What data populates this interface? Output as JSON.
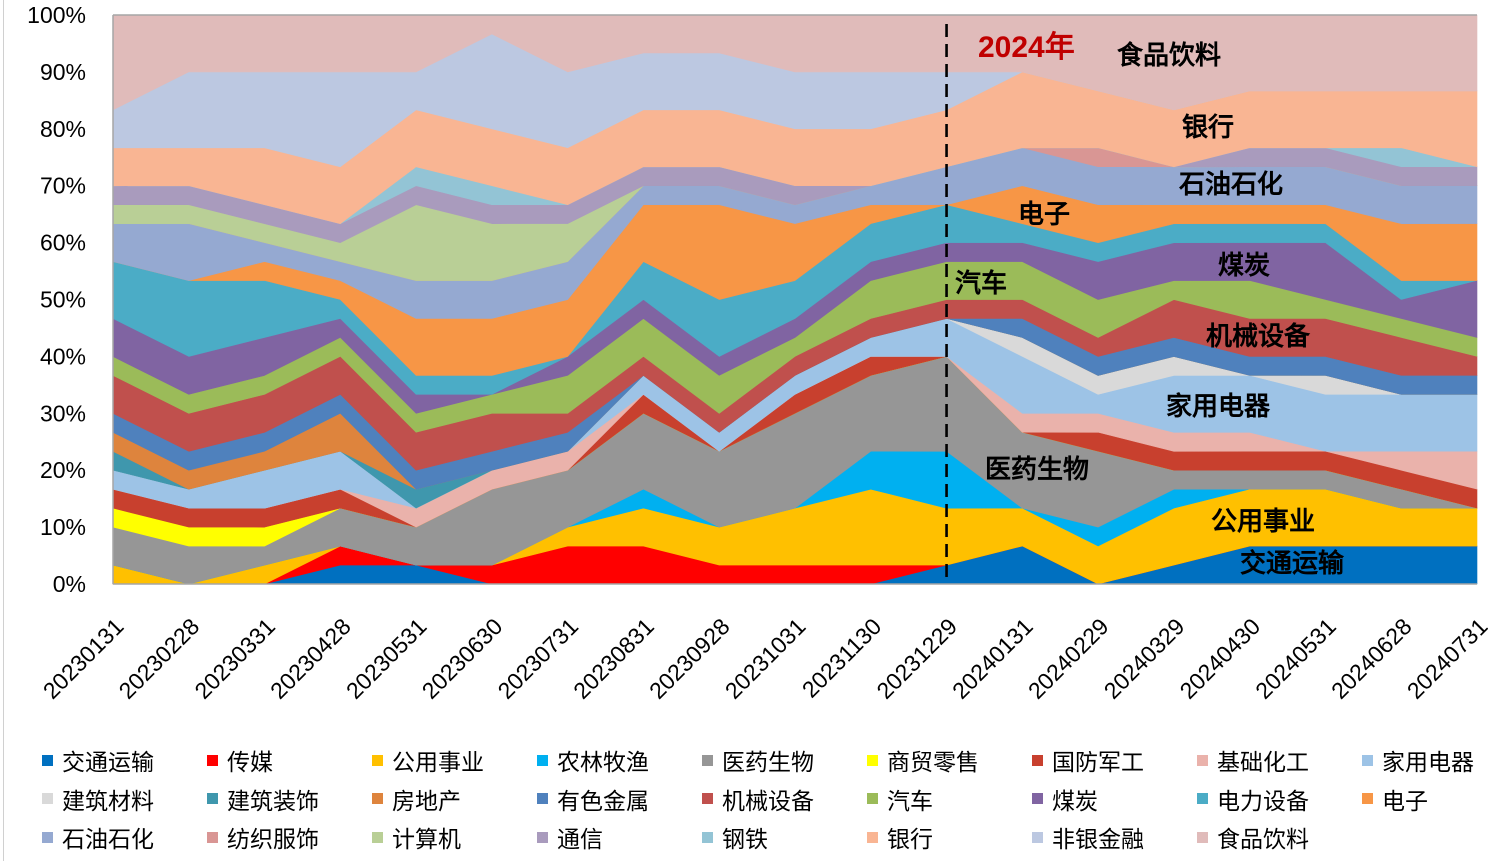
{
  "chart_data": {
    "type": "area",
    "stacked": "percent",
    "title": "",
    "xlabel": "",
    "ylabel": "",
    "ylim": [
      0,
      100
    ],
    "grid": false,
    "y_ticks": [
      0,
      10,
      20,
      30,
      40,
      50,
      60,
      70,
      80,
      90,
      100
    ],
    "y_tick_labels": [
      "0%",
      "10%",
      "20%",
      "30%",
      "40%",
      "50%",
      "60%",
      "70%",
      "80%",
      "90%",
      "100%"
    ],
    "categories": [
      "20230131",
      "20230228",
      "20230331",
      "20230428",
      "20230531",
      "20230630",
      "20230731",
      "20230831",
      "20230928",
      "20231031",
      "20231130",
      "20231229",
      "20240131",
      "20240229",
      "20240329",
      "20240430",
      "20240531",
      "20240628",
      "20240731"
    ],
    "series": [
      {
        "name": "交通运输",
        "color": "#0070C0",
        "values": [
          0,
          0,
          0,
          3.33,
          3.33,
          0,
          0,
          0,
          0,
          0,
          0,
          3.33,
          6.67,
          0,
          3.33,
          6.67,
          6.67,
          6.67,
          6.67
        ]
      },
      {
        "name": "传媒",
        "color": "#FF0000",
        "values": [
          0,
          0,
          0,
          3.33,
          0,
          3.33,
          6.67,
          6.67,
          3.33,
          3.33,
          3.33,
          0,
          0,
          0,
          0,
          0,
          0,
          0,
          0
        ]
      },
      {
        "name": "公用事业",
        "color": "#FFC000",
        "values": [
          3.33,
          0,
          3.33,
          0,
          0,
          0,
          3.33,
          6.67,
          6.67,
          10,
          13.33,
          10,
          6.67,
          6.67,
          10,
          10,
          10,
          6.67,
          6.67
        ]
      },
      {
        "name": "农林牧渔",
        "color": "#00B0F0",
        "values": [
          0,
          0,
          0,
          0,
          0,
          0,
          0,
          3.33,
          0,
          0,
          6.67,
          10,
          0,
          3.33,
          3.33,
          0,
          0,
          0,
          0
        ]
      },
      {
        "name": "医药生物",
        "color": "#969696",
        "values": [
          6.67,
          6.67,
          3.33,
          6.67,
          6.67,
          13.33,
          10,
          13.33,
          13.33,
          16.67,
          13.33,
          16.67,
          13.33,
          13.33,
          3.33,
          3.33,
          3.33,
          3.33,
          0
        ]
      },
      {
        "name": "商贸零售",
        "color": "#FFFF00",
        "values": [
          3.33,
          3.33,
          3.33,
          0,
          0,
          0,
          0,
          0,
          0,
          0,
          0,
          0,
          0,
          0,
          0,
          0,
          0,
          0,
          0
        ]
      },
      {
        "name": "国防军工",
        "color": "#C8402E",
        "values": [
          3.33,
          3.33,
          3.33,
          3.33,
          0,
          0,
          0,
          3.33,
          0,
          3.33,
          3.33,
          0,
          0,
          3.33,
          3.33,
          3.33,
          3.33,
          3.33,
          3.33
        ]
      },
      {
        "name": "基础化工",
        "color": "#EAB2AB",
        "values": [
          0,
          0,
          0,
          0,
          3.33,
          3.33,
          3.33,
          0,
          0,
          0,
          0,
          0,
          3.33,
          3.33,
          3.33,
          3.33,
          0,
          3.33,
          6.67
        ]
      },
      {
        "name": "家用电器",
        "color": "#9DC3E6",
        "values": [
          3.33,
          3.33,
          6.67,
          6.67,
          0,
          0,
          0,
          3.33,
          3.33,
          3.33,
          3.33,
          6.67,
          10,
          3.33,
          10,
          10,
          10,
          10,
          10
        ]
      },
      {
        "name": "建筑材料",
        "color": "#D9D9D9",
        "values": [
          0,
          0,
          0,
          0,
          0,
          0,
          0,
          0,
          0,
          0,
          0,
          0,
          3.33,
          3.33,
          3.33,
          0,
          3.33,
          0,
          0
        ]
      },
      {
        "name": "建筑装饰",
        "color": "#3F97AD",
        "values": [
          3.33,
          0,
          0,
          0,
          3.33,
          0,
          0,
          0,
          0,
          0,
          0,
          0,
          0,
          0,
          0,
          0,
          0,
          0,
          0
        ]
      },
      {
        "name": "房地产",
        "color": "#DE843D",
        "values": [
          3.33,
          3.33,
          3.33,
          6.67,
          0,
          0,
          0,
          0,
          0,
          0,
          0,
          0,
          0,
          0,
          0,
          0,
          0,
          0,
          0
        ]
      },
      {
        "name": "有色金属",
        "color": "#4F81BD",
        "values": [
          3.33,
          3.33,
          3.33,
          3.33,
          3.33,
          3.33,
          3.33,
          0,
          0,
          0,
          0,
          0,
          3.33,
          3.33,
          3.33,
          3.33,
          3.33,
          3.33,
          3.33
        ]
      },
      {
        "name": "机械设备",
        "color": "#C0504D",
        "values": [
          6.67,
          6.67,
          6.67,
          6.67,
          6.67,
          6.67,
          3.33,
          3.33,
          3.33,
          3.33,
          3.33,
          3.33,
          3.33,
          3.33,
          6.67,
          6.67,
          6.67,
          6.67,
          3.33
        ]
      },
      {
        "name": "汽车",
        "color": "#9BBB59",
        "values": [
          3.33,
          3.33,
          3.33,
          3.33,
          3.33,
          3.33,
          6.67,
          6.67,
          6.67,
          3.33,
          6.67,
          6.67,
          6.67,
          6.67,
          3.33,
          6.67,
          3.33,
          3.33,
          3.33
        ]
      },
      {
        "name": "煤炭",
        "color": "#8064A2",
        "values": [
          6.67,
          6.67,
          6.67,
          3.33,
          3.33,
          0,
          3.33,
          3.33,
          3.33,
          3.33,
          3.33,
          3.33,
          3.33,
          6.67,
          6.67,
          6.67,
          10,
          3.33,
          10
        ]
      },
      {
        "name": "电力设备",
        "color": "#4BACC6",
        "values": [
          10,
          13.33,
          10,
          3.33,
          3.33,
          3.33,
          0,
          6.67,
          10,
          6.67,
          6.67,
          6.67,
          3.33,
          3.33,
          3.33,
          3.33,
          3.33,
          3.33,
          0
        ]
      },
      {
        "name": "电子",
        "color": "#F79646",
        "values": [
          0,
          0,
          3.33,
          3.33,
          10,
          10,
          10,
          10,
          16.67,
          10,
          3.33,
          0,
          6.67,
          6.67,
          3.33,
          3.33,
          3.33,
          10,
          10
        ]
      },
      {
        "name": "石油石化",
        "color": "#95A9D1",
        "values": [
          6.67,
          10,
          3.33,
          3.33,
          6.67,
          6.67,
          6.67,
          3.33,
          3.33,
          3.33,
          3.33,
          6.67,
          6.67,
          6.67,
          6.67,
          6.67,
          6.67,
          6.67,
          6.67
        ]
      },
      {
        "name": "纺织服饰",
        "color": "#D99694",
        "values": [
          0,
          0,
          0,
          0,
          0,
          0,
          0,
          0,
          0,
          0,
          0,
          0,
          0,
          3.33,
          0,
          0,
          0,
          0,
          0
        ]
      },
      {
        "name": "计算机",
        "color": "#B9CF96",
        "values": [
          3.33,
          3.33,
          3.33,
          3.33,
          13.33,
          10,
          6.67,
          0,
          0,
          0,
          0,
          0,
          0,
          0,
          0,
          0,
          0,
          0,
          0
        ]
      },
      {
        "name": "通信",
        "color": "#A99BBD",
        "values": [
          3.33,
          3.33,
          3.33,
          3.33,
          3.33,
          3.33,
          3.33,
          3.33,
          3.33,
          3.33,
          0,
          0,
          0,
          0,
          0,
          3.33,
          3.33,
          3.33,
          3.33
        ]
      },
      {
        "name": "钢铁",
        "color": "#93C4D5",
        "values": [
          0,
          0,
          0,
          0,
          3.33,
          3.33,
          0,
          0,
          0,
          0,
          0,
          0,
          0,
          0,
          0,
          0,
          0,
          3.33,
          0
        ]
      },
      {
        "name": "银行",
        "color": "#F9B593",
        "values": [
          6.67,
          6.67,
          10,
          10,
          10,
          10,
          10,
          10,
          10,
          10,
          10,
          10,
          13.33,
          10,
          10,
          10,
          10,
          10,
          13.33
        ]
      },
      {
        "name": "非银金融",
        "color": "#BCC8E1",
        "values": [
          6.67,
          13.33,
          13.33,
          16.67,
          6.67,
          16.67,
          13.33,
          10,
          10,
          10,
          10,
          6.67,
          0,
          0,
          0,
          0,
          0,
          0,
          0
        ]
      },
      {
        "name": "食品饮料",
        "color": "#E0BBBA",
        "values": [
          16.67,
          10,
          10,
          10,
          10,
          3.33,
          10,
          6.67,
          6.67,
          10,
          10,
          10,
          10,
          13.33,
          16.67,
          13.33,
          13.33,
          13.33,
          13.33
        ]
      }
    ],
    "reference_line": {
      "x": "20231229",
      "style": "dashed",
      "color": "#000000",
      "label": "2024年",
      "label_color": "#C00000"
    },
    "annotations": [
      "食品饮料",
      "银行",
      "石油石化",
      "电子",
      "煤炭",
      "汽车",
      "机械设备",
      "家用电器",
      "医药生物",
      "公用事业",
      "交通运输"
    ],
    "legend": {
      "position": "bottom",
      "columns": 9
    }
  }
}
